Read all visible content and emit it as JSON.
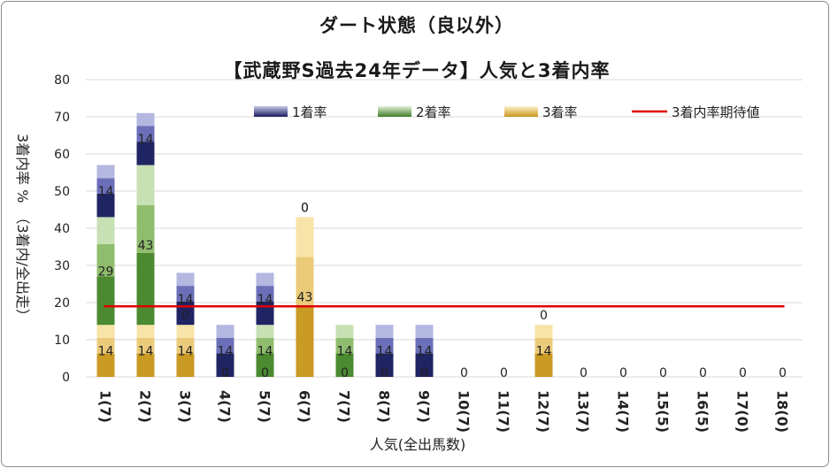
{
  "chart_data": {
    "type": "bar",
    "stacked": true,
    "title_line1": "ダート状態（良以外）",
    "title_line2": "【武蔵野S過去24年データ】人気と3着内率",
    "xlabel": "人気(全出馬数)",
    "ylabel": "3着内率 %　（3着内/全出走）",
    "ylim": [
      0,
      80
    ],
    "yticks": [
      0,
      10,
      20,
      30,
      40,
      50,
      60,
      70,
      80
    ],
    "grid": true,
    "legend_position": "top",
    "categories": [
      "1(7)",
      "2(7)",
      "3(7)",
      "4(7)",
      "5(7)",
      "6(7)",
      "7(7)",
      "8(7)",
      "9(7)",
      "10(7)",
      "11(7)",
      "12(7)",
      "13(7)",
      "14(7)",
      "15(5)",
      "16(5)",
      "17(0)",
      "18(0)"
    ],
    "series": [
      {
        "name": "3着率",
        "color": "#e2b23a",
        "values": [
          14,
          14,
          14,
          0,
          0,
          43,
          0,
          0,
          0,
          0,
          0,
          14,
          0,
          0,
          0,
          0,
          0,
          0
        ],
        "labels": [
          "14",
          "14",
          "14",
          "0",
          "0",
          "43",
          "0",
          "0",
          "0",
          "0",
          "0",
          "14",
          "0",
          "0",
          "0",
          "0",
          "0",
          "0"
        ]
      },
      {
        "name": "2着率",
        "color": "#5c9a3c",
        "values": [
          29,
          43,
          0,
          0,
          14,
          0,
          14,
          0,
          0,
          0,
          0,
          0,
          0,
          0,
          0,
          0,
          0,
          0
        ],
        "labels": [
          "29",
          "43",
          "0",
          "0",
          "14",
          "0",
          "14",
          "0",
          "0",
          "",
          "",
          "0",
          "",
          "",
          "",
          "",
          "",
          ""
        ]
      },
      {
        "name": "1着率",
        "color": "#2b2f7a",
        "values": [
          14,
          14,
          14,
          14,
          14,
          0,
          0,
          14,
          14,
          0,
          0,
          0,
          0,
          0,
          0,
          0,
          0,
          0
        ],
        "labels": [
          "14",
          "14",
          "14",
          "14",
          "14",
          "0",
          "",
          "14",
          "14",
          "",
          "",
          "",
          "",
          "",
          "",
          "",
          "",
          ""
        ]
      }
    ],
    "reference_line": {
      "name": "3着内率期待値",
      "value": 19,
      "color": "#e00000"
    }
  }
}
